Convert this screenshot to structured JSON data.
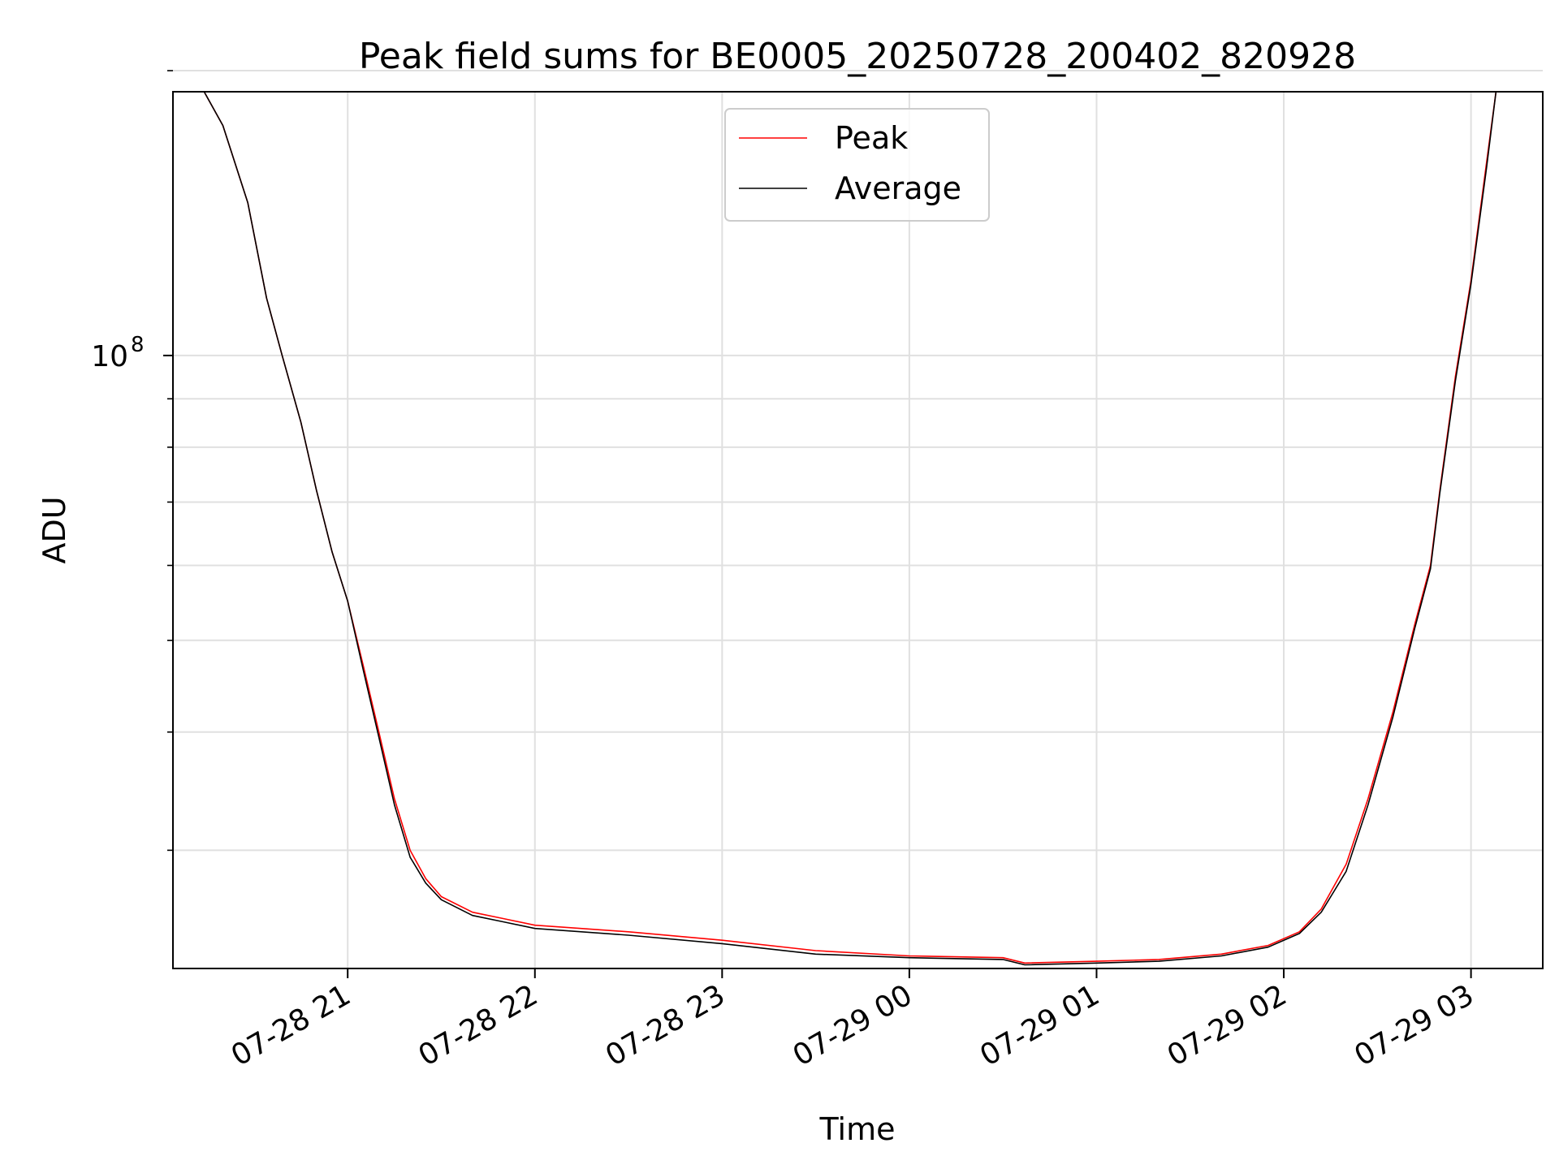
{
  "chart_data": {
    "type": "line",
    "title": "Peak field sums for BE0005_20250728_200402_820928",
    "xlabel": "Time",
    "ylabel": "ADU",
    "y_scale": "log",
    "xlim": [
      "2025-07-28 20:04",
      "2025-07-29 03:23"
    ],
    "ylim": [
      22500000,
      190000000
    ],
    "grid": true,
    "legend": "upper center",
    "x_ticks": [
      "2025-07-28 21:00",
      "2025-07-28 22:00",
      "2025-07-28 23:00",
      "2025-07-29 00:00",
      "2025-07-29 01:00",
      "2025-07-29 02:00",
      "2025-07-29 03:00"
    ],
    "x_tick_labels": [
      "07-28 21",
      "07-28 22",
      "07-28 23",
      "07-29 00",
      "07-29 01",
      "07-29 02",
      "07-29 03"
    ],
    "y_major_ticks": [
      100000000
    ],
    "y_major_tick_label_base": "10",
    "y_major_tick_label_exp": "8",
    "y_minor_ticks": [
      30000000,
      40000000,
      50000000,
      60000000,
      70000000,
      80000000,
      90000000,
      200000000
    ],
    "series": [
      {
        "name": "Peak",
        "color": "#ff0000",
        "x": [
          "2025-07-28 20:14",
          "2025-07-28 20:20",
          "2025-07-28 20:28",
          "2025-07-28 20:34",
          "2025-07-28 20:39",
          "2025-07-28 20:45",
          "2025-07-28 20:50",
          "2025-07-28 20:55",
          "2025-07-28 21:00",
          "2025-07-28 21:05",
          "2025-07-28 21:10",
          "2025-07-28 21:15",
          "2025-07-28 21:20",
          "2025-07-28 21:25",
          "2025-07-28 21:30",
          "2025-07-28 21:40",
          "2025-07-28 21:50",
          "2025-07-28 22:00",
          "2025-07-28 22:30",
          "2025-07-28 23:00",
          "2025-07-28 23:30",
          "2025-07-29 00:00",
          "2025-07-29 00:30",
          "2025-07-29 00:37",
          "2025-07-29 01:00",
          "2025-07-29 01:20",
          "2025-07-29 01:40",
          "2025-07-29 01:55",
          "2025-07-29 02:05",
          "2025-07-29 02:12",
          "2025-07-29 02:20",
          "2025-07-29 02:27",
          "2025-07-29 02:35",
          "2025-07-29 02:42",
          "2025-07-29 02:47",
          "2025-07-29 02:50",
          "2025-07-29 02:55",
          "2025-07-29 03:00",
          "2025-07-29 03:05",
          "2025-07-29 03:08",
          "2025-07-29 03:23"
        ],
        "values": [
          190000000,
          175000000,
          145000000,
          115000000,
          100000000,
          85000000,
          72000000,
          62000000,
          55000000,
          47000000,
          40000000,
          34000000,
          30000000,
          28000000,
          26800000,
          25800000,
          25400000,
          25000000,
          24600000,
          24100000,
          23500000,
          23200000,
          23100000,
          22800000,
          22900000,
          23000000,
          23300000,
          23800000,
          24600000,
          26000000,
          29000000,
          34000000,
          42000000,
          52000000,
          60000000,
          72000000,
          95000000,
          120000000,
          160000000,
          190000000,
          190000000
        ]
      },
      {
        "name": "Average",
        "color": "#000000",
        "x": [
          "2025-07-28 20:14",
          "2025-07-28 20:20",
          "2025-07-28 20:28",
          "2025-07-28 20:34",
          "2025-07-28 20:39",
          "2025-07-28 20:45",
          "2025-07-28 20:50",
          "2025-07-28 20:55",
          "2025-07-28 21:00",
          "2025-07-28 21:05",
          "2025-07-28 21:10",
          "2025-07-28 21:15",
          "2025-07-28 21:20",
          "2025-07-28 21:25",
          "2025-07-28 21:30",
          "2025-07-28 21:40",
          "2025-07-28 21:50",
          "2025-07-28 22:00",
          "2025-07-28 22:30",
          "2025-07-28 23:00",
          "2025-07-28 23:30",
          "2025-07-29 00:00",
          "2025-07-29 00:30",
          "2025-07-29 00:37",
          "2025-07-29 01:00",
          "2025-07-29 01:20",
          "2025-07-29 01:40",
          "2025-07-29 01:55",
          "2025-07-29 02:05",
          "2025-07-29 02:12",
          "2025-07-29 02:20",
          "2025-07-29 02:27",
          "2025-07-29 02:35",
          "2025-07-29 02:42",
          "2025-07-29 02:47",
          "2025-07-29 02:50",
          "2025-07-29 02:55",
          "2025-07-29 03:00",
          "2025-07-29 03:05",
          "2025-07-29 03:08",
          "2025-07-29 03:23"
        ],
        "values": [
          190000000,
          175000000,
          145000000,
          115000000,
          100000000,
          85000000,
          72000000,
          62000000,
          55000000,
          46500000,
          39500000,
          33500000,
          29500000,
          27700000,
          26600000,
          25600000,
          25200000,
          24800000,
          24400000,
          23900000,
          23300000,
          23100000,
          23000000,
          22700000,
          22800000,
          22900000,
          23200000,
          23700000,
          24500000,
          25800000,
          28500000,
          33500000,
          41500000,
          51500000,
          59500000,
          71500000,
          94000000,
          119000000,
          158000000,
          190000000,
          190000000
        ]
      }
    ]
  }
}
